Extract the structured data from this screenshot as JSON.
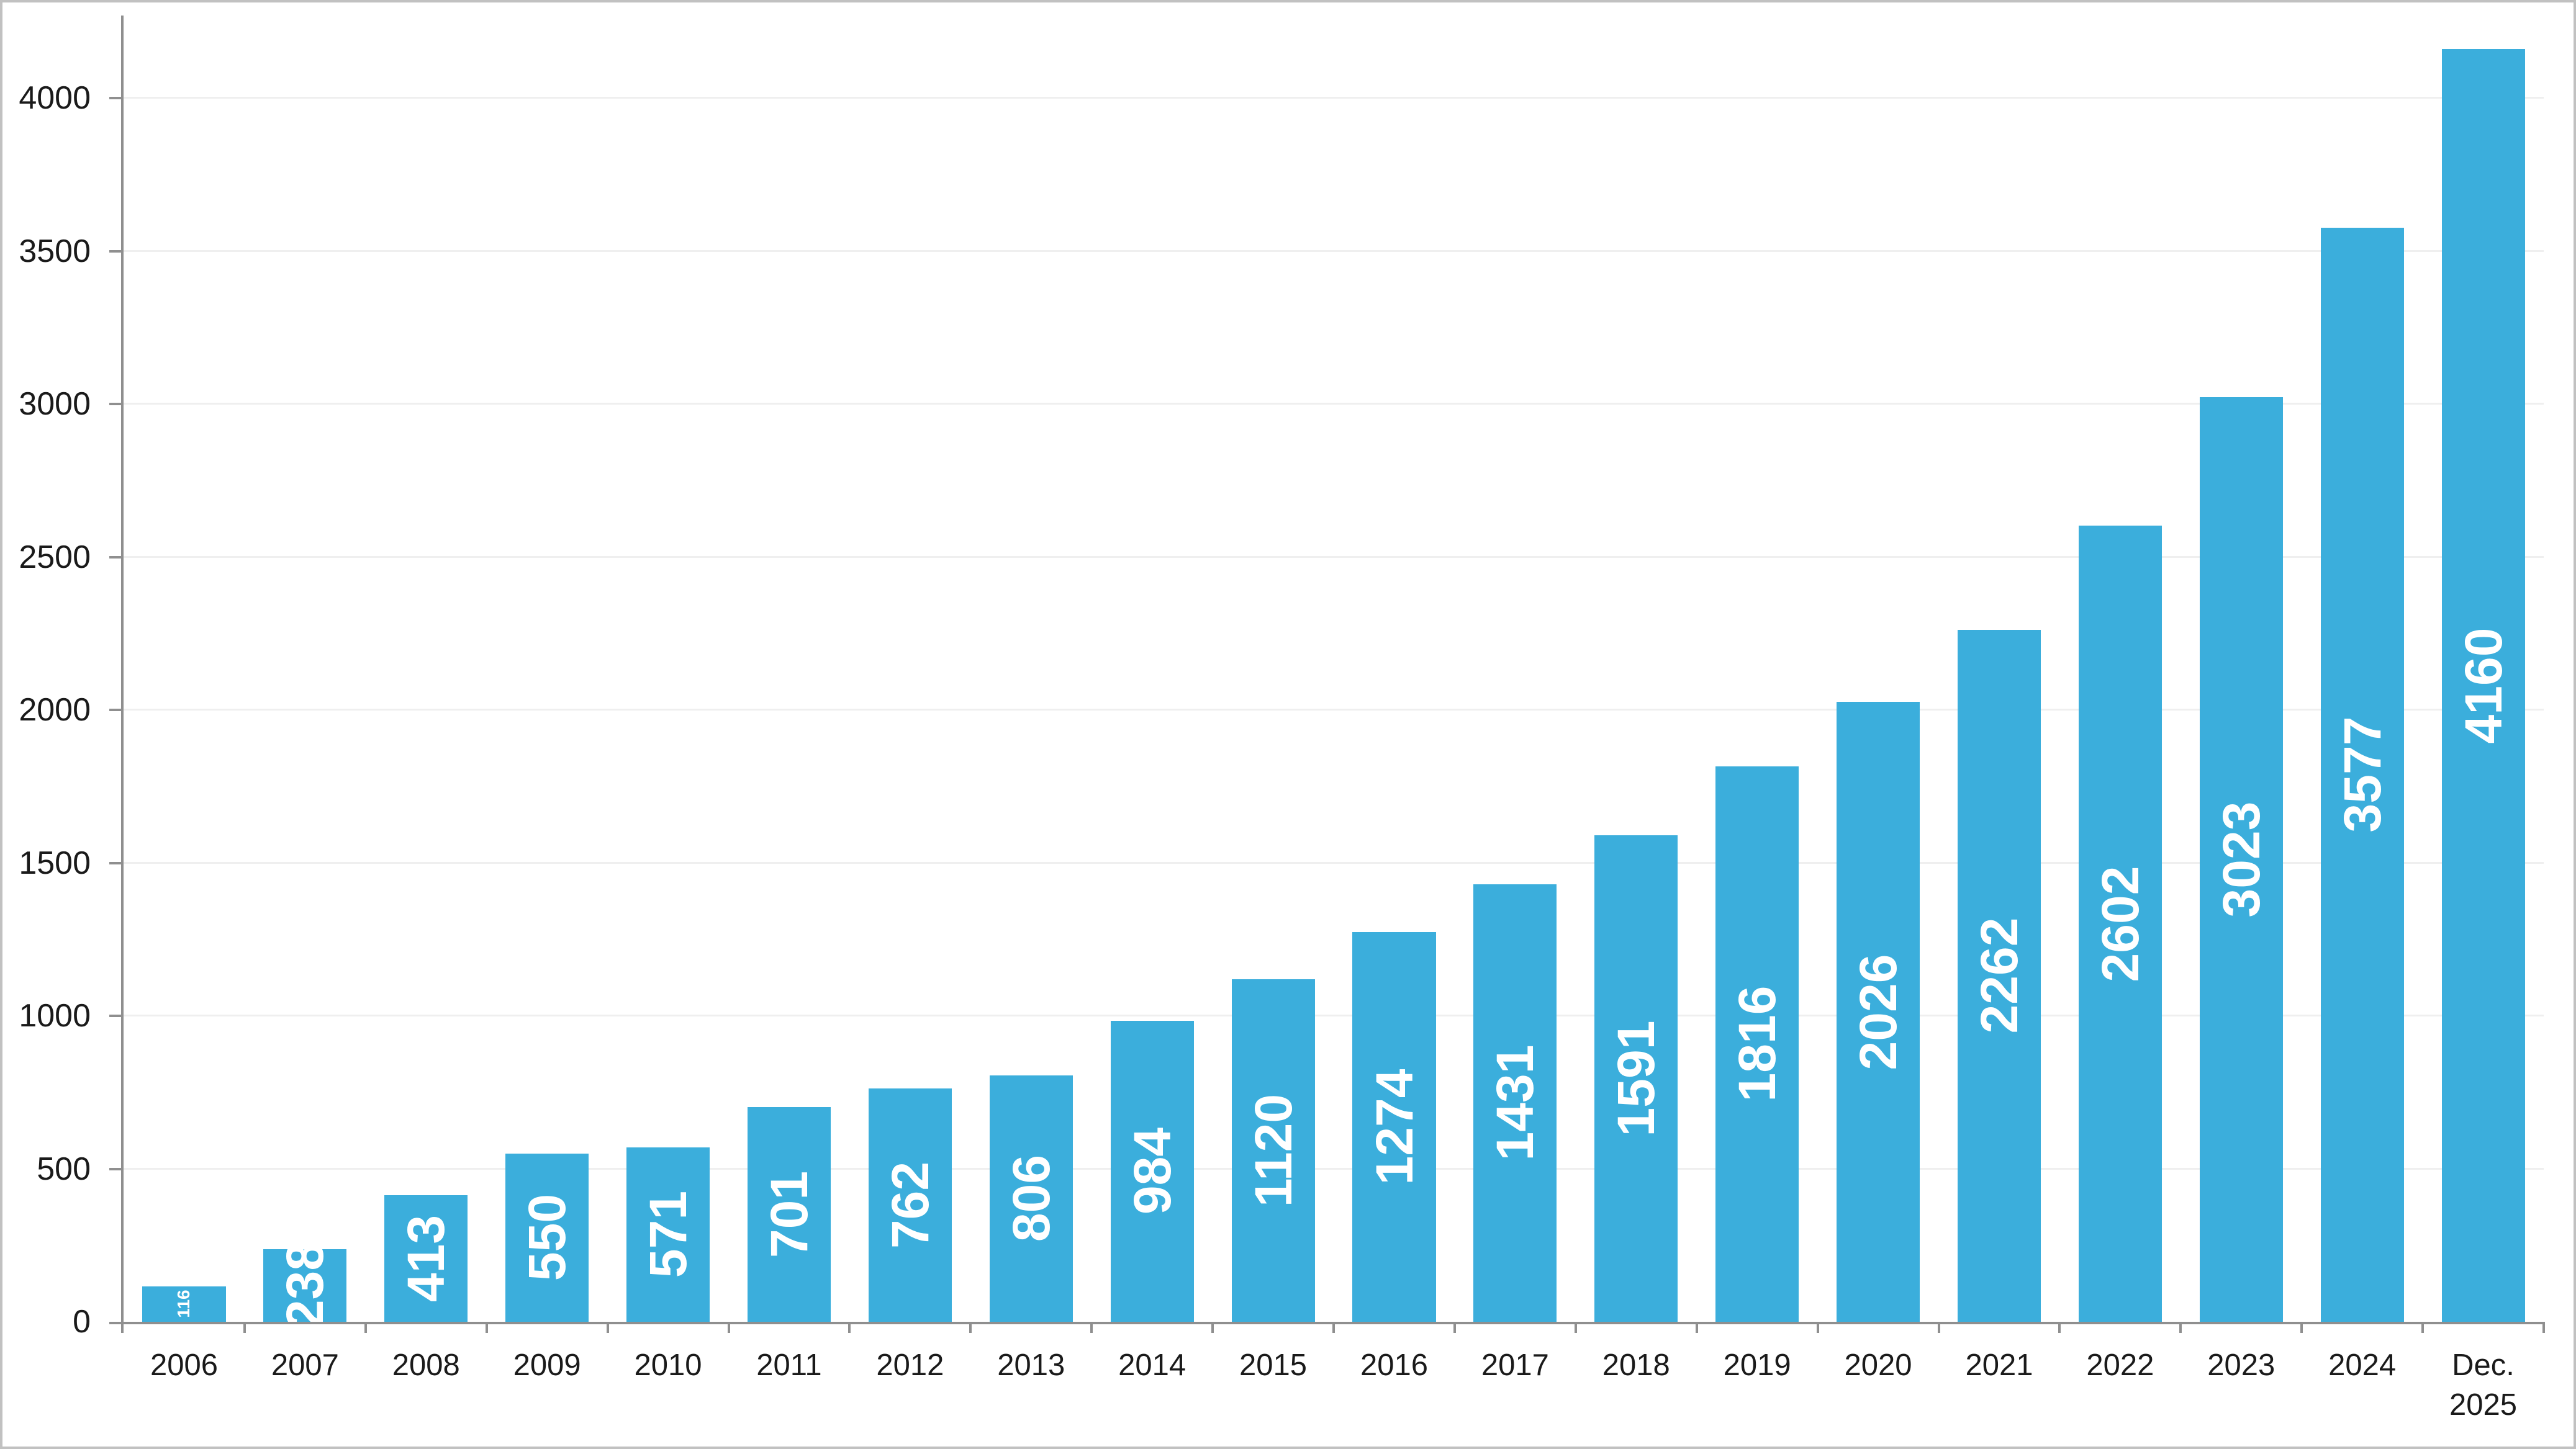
{
  "chart_data": {
    "type": "bar",
    "title": "",
    "xlabel": "",
    "ylabel": "",
    "categories": [
      "2006",
      "2007",
      "2008",
      "2009",
      "2010",
      "2011",
      "2012",
      "2013",
      "2014",
      "2015",
      "2016",
      "2017",
      "2018",
      "2019",
      "2020",
      "2021",
      "2022",
      "2023",
      "2024",
      "Dec. 2025"
    ],
    "values": [
      116,
      238,
      413,
      550,
      571,
      701,
      762,
      806,
      984,
      1120,
      1274,
      1431,
      1591,
      1816,
      2026,
      2262,
      2602,
      3023,
      3577,
      4160
    ],
    "ylim": [
      0,
      4270
    ],
    "yticks": [
      0,
      500,
      1000,
      1500,
      2000,
      2500,
      3000,
      3500,
      4000
    ],
    "grid": "horizontal",
    "legend": "none",
    "value_labels": "inside-center, rotated -90deg, white bold",
    "bar_color": "#3BAEDC",
    "value_label_color": "#FFFFFF",
    "axis_color": "#8F8F8F",
    "gridline_color": "#EFEFEF",
    "tick_label_color": "#1A1A1A",
    "frame_border_color": "#C1C1C1"
  }
}
